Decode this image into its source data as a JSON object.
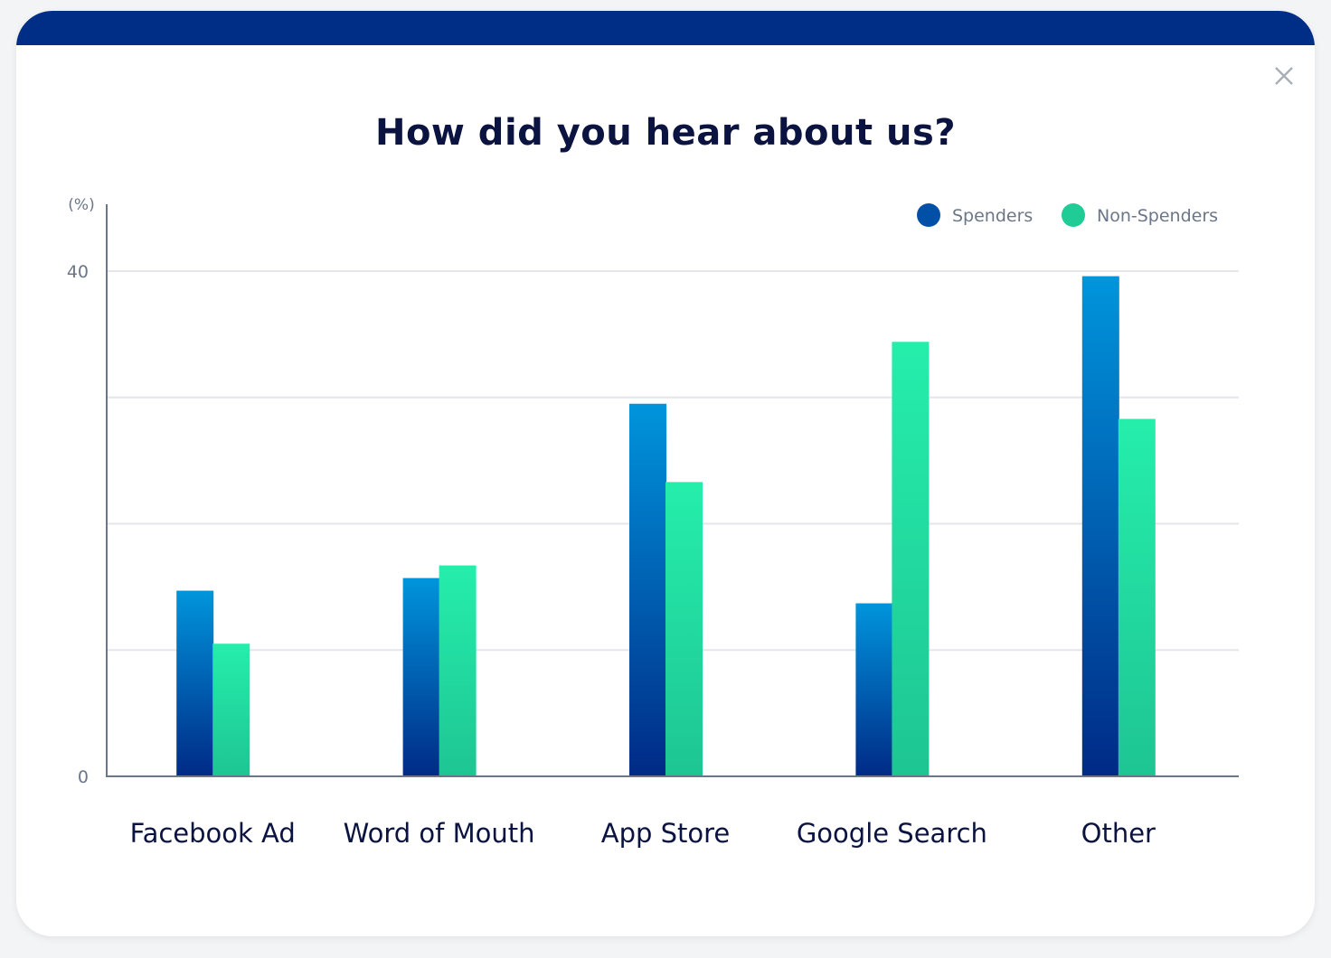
{
  "modal": {
    "title": "How did you hear about us?",
    "close_icon": "close-icon",
    "header_color": "#002d86"
  },
  "chart_data": {
    "type": "bar",
    "title": "How did you hear about us?",
    "ylabel": "(%)",
    "xlabel": "",
    "ylim": [
      0,
      40
    ],
    "y_tick_labels": [
      "0",
      "40"
    ],
    "y_tick_values": [
      0,
      40
    ],
    "gridlines": [
      10,
      20,
      30,
      40
    ],
    "grid": true,
    "legend_position": "top-right",
    "categories": [
      "Facebook Ad",
      "Word of Mouth",
      "App Store",
      "Google Search",
      "Other"
    ],
    "series": [
      {
        "name": "Spenders",
        "values": [
          14.7,
          15.7,
          29.5,
          13.7,
          39.6
        ],
        "color": "#0050a8",
        "gradient": [
          "#0095dc",
          "#002a86"
        ]
      },
      {
        "name": "Non-Spenders",
        "values": [
          10.5,
          16.7,
          23.3,
          34.4,
          28.3
        ],
        "color": "#20cc96",
        "gradient": [
          "#25eeab",
          "#1ec593"
        ]
      }
    ]
  }
}
